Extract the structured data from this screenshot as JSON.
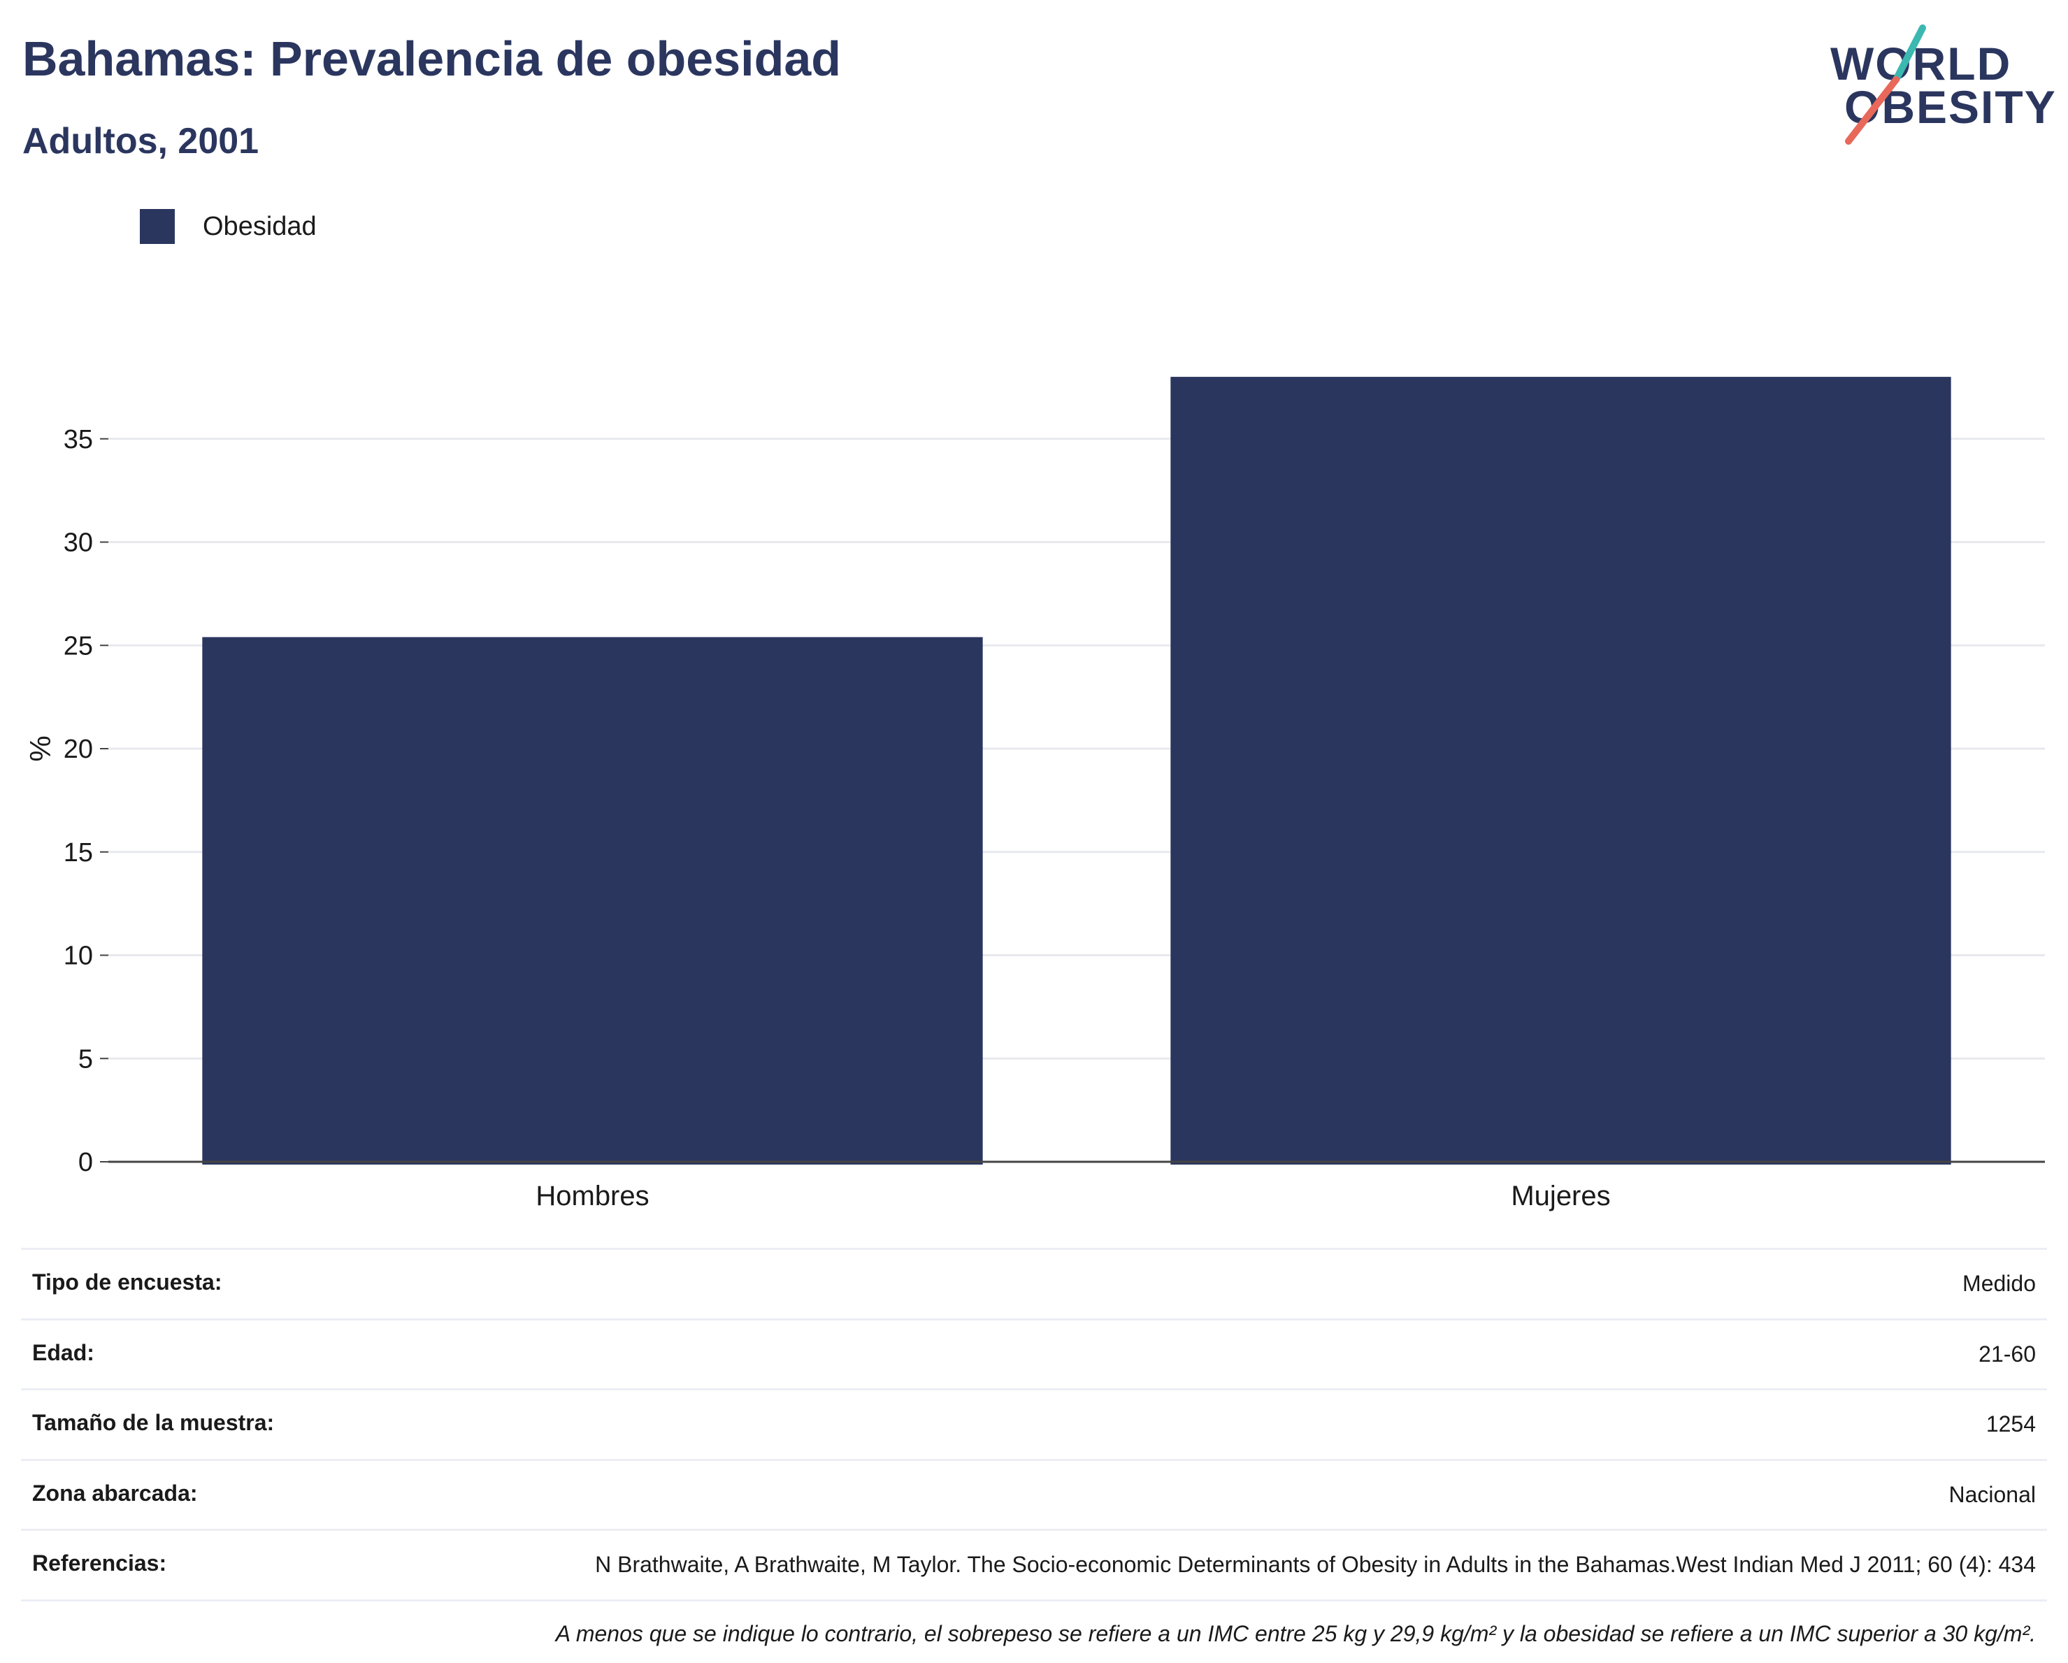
{
  "header": {
    "title": "Bahamas: Prevalencia de obesidad",
    "subtitle": "Adultos, 2001"
  },
  "logo": {
    "line1": "WORLD",
    "line2": "OBESITY",
    "accent_colors": [
      "#3bb8b0",
      "#e8685a"
    ]
  },
  "legend": {
    "label": "Obesidad",
    "color": "#2b365f"
  },
  "chart_data": {
    "type": "bar",
    "categories": [
      "Hombres",
      "Mujeres"
    ],
    "series": [
      {
        "name": "Obesidad",
        "values": [
          25.4,
          38.0
        ],
        "color": "#2b365f"
      }
    ],
    "xlabel": "",
    "ylabel": "%",
    "ylim": [
      0,
      40
    ],
    "yticks": [
      0,
      5,
      10,
      15,
      20,
      25,
      30,
      35
    ],
    "grid": true,
    "legend_position": "top-left"
  },
  "info": {
    "rows": [
      {
        "key": "Tipo de encuesta:",
        "value": "Medido"
      },
      {
        "key": "Edad:",
        "value": "21-60"
      },
      {
        "key": "Tamaño de la muestra:",
        "value": "1254"
      },
      {
        "key": "Zona abarcada:",
        "value": "Nacional"
      },
      {
        "key": "Referencias:",
        "value": "N Brathwaite, A Brathwaite, M Taylor. The Socio-economic Determinants of Obesity in Adults in the Bahamas.West Indian Med J 2011; 60 (4): 434"
      }
    ],
    "note": "A menos que se indique lo contrario, el sobrepeso se refiere a un IMC entre 25 kg y 29,9 kg/m² y la obesidad se refiere a un IMC superior a 30 kg/m²."
  }
}
